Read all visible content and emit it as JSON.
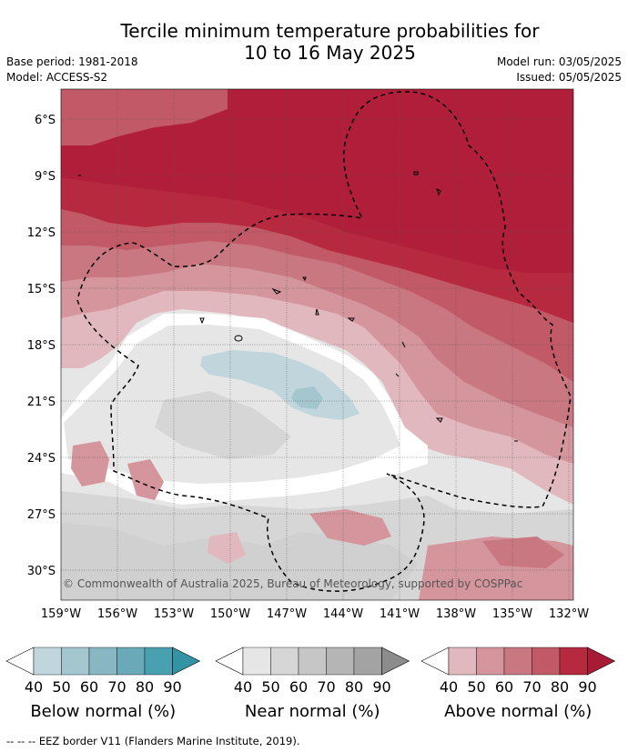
{
  "title_line1": "Tercile minimum temperature probabilities for",
  "title_line2": "10 to 16 May 2025",
  "base_period": "Base period: 1981-2018",
  "model": "Model: ACCESS-S2",
  "model_run": "Model run: 03/05/2025",
  "issued": "Issued: 05/05/2025",
  "copyright": "© Commonwealth of Australia 2025, Bureau of Meteorology, supported by COSPPac",
  "lat_labels": [
    "6°S",
    "9°S",
    "12°S",
    "15°S",
    "18°S",
    "21°S",
    "24°S",
    "27°S",
    "30°S"
  ],
  "lon_labels": [
    "159°W",
    "156°W",
    "153°W",
    "150°W",
    "147°W",
    "144°W",
    "141°W",
    "138°W",
    "135°W",
    "132°W"
  ],
  "colorbars": [
    {
      "label": "Below normal (%)",
      "ticks": [
        "40",
        "50",
        "60",
        "70",
        "80",
        "90"
      ],
      "colors": [
        "#c0d6dc",
        "#a3c6cf",
        "#88b7c3",
        "#6aa9b7",
        "#48a0b1",
        "#3393a5"
      ]
    },
    {
      "label": "Near normal (%)",
      "ticks": [
        "40",
        "50",
        "60",
        "70",
        "80",
        "90"
      ],
      "colors": [
        "#e6e6e6",
        "#d6d6d6",
        "#c6c6c6",
        "#b5b5b5",
        "#a3a3a3",
        "#8c8c8c"
      ]
    },
    {
      "label": "Above normal (%)",
      "ticks": [
        "40",
        "50",
        "60",
        "70",
        "80",
        "90"
      ],
      "colors": [
        "#e0b8bd",
        "#d4959c",
        "#c97780",
        "#c15a66",
        "#b7293e",
        "#a71b36"
      ]
    }
  ],
  "footer": "--  --  -- EEZ border V11 (Flanders Marine Institute, 2019)."
}
